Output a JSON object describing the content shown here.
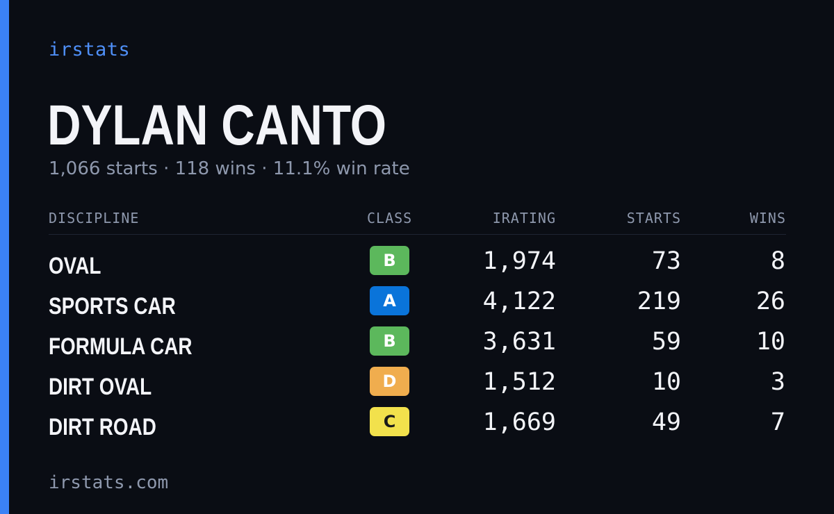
{
  "brand": "irstats",
  "player": {
    "name": "DYLAN CANTO",
    "summary": "1,066 starts · 118 wins · 11.1% win rate"
  },
  "table": {
    "headers": {
      "discipline": "DISCIPLINE",
      "class": "CLASS",
      "irating": "IRATING",
      "starts": "STARTS",
      "wins": "WINS"
    },
    "rows": [
      {
        "discipline": "OVAL",
        "class": "B",
        "class_color": "#5cb85c",
        "class_text_color": "#ffffff",
        "irating": "1,974",
        "starts": "73",
        "wins": "8"
      },
      {
        "discipline": "SPORTS CAR",
        "class": "A",
        "class_color": "#0a74da",
        "class_text_color": "#ffffff",
        "irating": "4,122",
        "starts": "219",
        "wins": "26"
      },
      {
        "discipline": "FORMULA CAR",
        "class": "B",
        "class_color": "#5cb85c",
        "class_text_color": "#ffffff",
        "irating": "3,631",
        "starts": "59",
        "wins": "10"
      },
      {
        "discipline": "DIRT OVAL",
        "class": "D",
        "class_color": "#f0ad4e",
        "class_text_color": "#ffffff",
        "irating": "1,512",
        "starts": "10",
        "wins": "3"
      },
      {
        "discipline": "DIRT ROAD",
        "class": "C",
        "class_color": "#f2e14c",
        "class_text_color": "#1a1a1a",
        "irating": "1,669",
        "starts": "49",
        "wins": "7"
      }
    ]
  },
  "footer": {
    "url": "irstats.com"
  },
  "colors": {
    "background": "#0a0d14",
    "accent": "#3b82f6",
    "text_primary": "#f3f4f8",
    "text_muted": "#8e98ad"
  }
}
